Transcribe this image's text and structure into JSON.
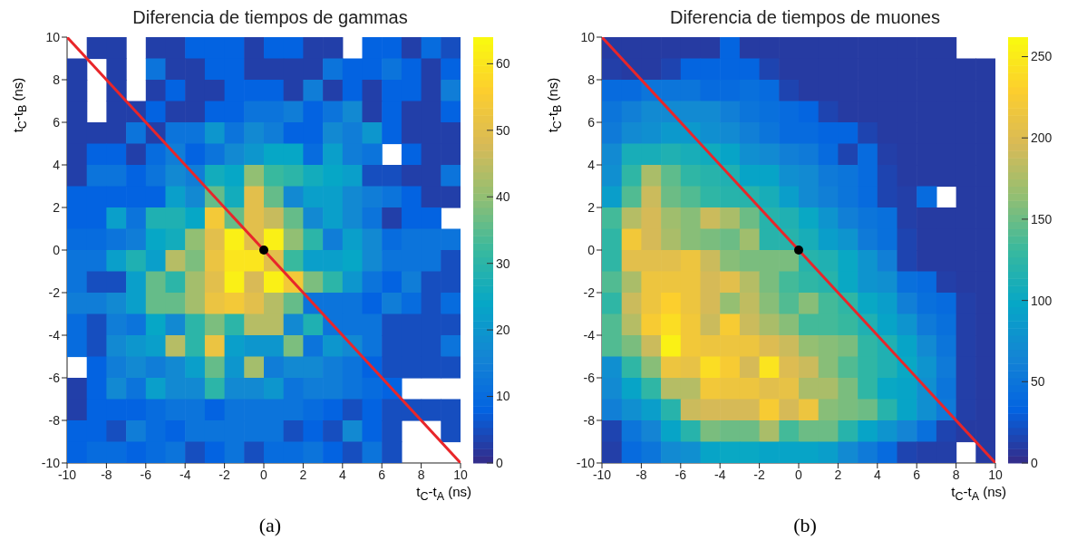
{
  "chart_data": [
    {
      "type": "heatmap",
      "title": "Diferencia de tiempos de gammas",
      "xlabel": "t$_{C}$-t$_{A}$ (ns)",
      "ylabel": "t$_{C}$-t$_{B}$ (ns)",
      "annotations": [
        "(a)"
      ],
      "xlim": [
        -10,
        10
      ],
      "ylim": [
        -10,
        10
      ],
      "xticks": [
        -10,
        -8,
        -6,
        -4,
        -2,
        0,
        2,
        4,
        6,
        8,
        10
      ],
      "yticks": [
        -10,
        -8,
        -6,
        -4,
        -2,
        0,
        2,
        4,
        6,
        8,
        10
      ],
      "clim": [
        0,
        64
      ],
      "cticks": [
        0,
        10,
        20,
        30,
        40,
        50,
        60
      ],
      "cells": [
        [
          null,
          3,
          3,
          null,
          3,
          3,
          8,
          8,
          8,
          3,
          8,
          8,
          3,
          3,
          null,
          8,
          8,
          3,
          10,
          5
        ],
        [
          3,
          null,
          3,
          null,
          12,
          3,
          3,
          8,
          8,
          3,
          3,
          3,
          3,
          12,
          8,
          8,
          12,
          8,
          3,
          8
        ],
        [
          3,
          null,
          3,
          null,
          3,
          8,
          3,
          3,
          8,
          8,
          8,
          3,
          14,
          3,
          8,
          3,
          8,
          8,
          3,
          14
        ],
        [
          3,
          null,
          3,
          3,
          8,
          3,
          3,
          8,
          8,
          12,
          12,
          14,
          8,
          12,
          17,
          3,
          8,
          3,
          3,
          8
        ],
        [
          3,
          3,
          3,
          12,
          3,
          12,
          12,
          20,
          12,
          17,
          14,
          8,
          8,
          17,
          14,
          20,
          8,
          3,
          3,
          3
        ],
        [
          3,
          8,
          8,
          3,
          10,
          14,
          8,
          12,
          17,
          20,
          24,
          24,
          10,
          22,
          14,
          12,
          null,
          8,
          3,
          3
        ],
        [
          3,
          12,
          12,
          8,
          12,
          17,
          14,
          26,
          24,
          40,
          32,
          30,
          26,
          24,
          22,
          5,
          5,
          3,
          3,
          12
        ],
        [
          8,
          8,
          8,
          8,
          8,
          22,
          17,
          36,
          26,
          50,
          36,
          17,
          22,
          22,
          17,
          14,
          12,
          8,
          3,
          3
        ],
        [
          8,
          8,
          22,
          12,
          28,
          28,
          24,
          54,
          36,
          50,
          46,
          36,
          17,
          22,
          17,
          12,
          3,
          8,
          8,
          null
        ],
        [
          10,
          10,
          12,
          14,
          24,
          26,
          40,
          50,
          62,
          50,
          62,
          40,
          30,
          14,
          22,
          17,
          10,
          12,
          12,
          12
        ],
        [
          12,
          12,
          22,
          28,
          22,
          44,
          38,
          52,
          60,
          60,
          50,
          32,
          22,
          22,
          24,
          17,
          12,
          12,
          12,
          5
        ],
        [
          12,
          5,
          5,
          22,
          36,
          30,
          42,
          50,
          62,
          48,
          62,
          54,
          38,
          30,
          20,
          12,
          8,
          14,
          5,
          5
        ],
        [
          14,
          14,
          17,
          22,
          36,
          36,
          42,
          52,
          54,
          50,
          44,
          36,
          12,
          12,
          12,
          8,
          14,
          10,
          5,
          10
        ],
        [
          10,
          5,
          14,
          12,
          24,
          17,
          30,
          38,
          30,
          44,
          44,
          17,
          28,
          12,
          12,
          12,
          5,
          5,
          5,
          5
        ],
        [
          10,
          5,
          17,
          20,
          22,
          44,
          30,
          52,
          22,
          20,
          20,
          38,
          12,
          20,
          17,
          12,
          5,
          5,
          5,
          12
        ],
        [
          null,
          8,
          14,
          17,
          14,
          17,
          22,
          36,
          20,
          42,
          14,
          17,
          17,
          14,
          12,
          8,
          5,
          5,
          5,
          5
        ],
        [
          3,
          8,
          17,
          12,
          22,
          17,
          17,
          30,
          17,
          17,
          20,
          12,
          14,
          14,
          12,
          10,
          8,
          null,
          null,
          null
        ],
        [
          3,
          8,
          8,
          8,
          10,
          12,
          12,
          8,
          12,
          12,
          12,
          12,
          10,
          8,
          5,
          8,
          5,
          5,
          5,
          5
        ],
        [
          8,
          8,
          5,
          14,
          10,
          8,
          12,
          12,
          12,
          12,
          12,
          5,
          8,
          5,
          17,
          8,
          5,
          null,
          null,
          5
        ],
        [
          8,
          10,
          10,
          8,
          10,
          12,
          5,
          8,
          12,
          5,
          10,
          10,
          12,
          8,
          5,
          12,
          5,
          null,
          null,
          null
        ]
      ],
      "series": [
        {
          "type": "line",
          "color": "#e8262a",
          "x": [
            -10,
            10
          ],
          "values": [
            10,
            -10
          ]
        },
        {
          "type": "scatter",
          "color": "#000000",
          "x": [
            0
          ],
          "values": [
            0
          ]
        }
      ]
    },
    {
      "type": "heatmap",
      "title": "Diferencia de tiempos de muones",
      "xlabel": "t$_{C}$-t$_{A}$ (ns)",
      "ylabel": "t$_{C}$-t$_{B}$ (ns)",
      "annotations": [
        "(b)"
      ],
      "xlim": [
        -10,
        10
      ],
      "ylim": [
        -10,
        10
      ],
      "xticks": [
        -10,
        -8,
        -6,
        -4,
        -2,
        0,
        2,
        4,
        6,
        8,
        10
      ],
      "yticks": [
        -10,
        -8,
        -6,
        -4,
        -2,
        0,
        2,
        4,
        6,
        8,
        10
      ],
      "clim": [
        0,
        262
      ],
      "cticks": [
        0,
        50,
        100,
        150,
        200,
        250
      ],
      "cells": [
        [
          10,
          10,
          10,
          10,
          10,
          10,
          35,
          10,
          10,
          10,
          10,
          10,
          10,
          10,
          10,
          10,
          10,
          10,
          null,
          null
        ],
        [
          12,
          10,
          10,
          15,
          35,
          35,
          35,
          35,
          15,
          10,
          10,
          10,
          10,
          10,
          10,
          10,
          10,
          10,
          10,
          10
        ],
        [
          40,
          40,
          50,
          50,
          50,
          40,
          40,
          45,
          40,
          15,
          10,
          10,
          10,
          10,
          10,
          10,
          10,
          10,
          10,
          10
        ],
        [
          50,
          60,
          70,
          70,
          70,
          70,
          60,
          50,
          45,
          40,
          35,
          15,
          10,
          10,
          10,
          10,
          10,
          10,
          10,
          10
        ],
        [
          55,
          70,
          75,
          85,
          85,
          75,
          70,
          60,
          50,
          40,
          40,
          35,
          35,
          15,
          10,
          10,
          10,
          10,
          10,
          10
        ],
        [
          70,
          110,
          110,
          115,
          110,
          105,
          95,
          75,
          70,
          60,
          55,
          40,
          15,
          40,
          12,
          10,
          10,
          10,
          10,
          10
        ],
        [
          75,
          125,
          175,
          145,
          125,
          120,
          115,
          95,
          95,
          75,
          70,
          55,
          50,
          40,
          15,
          10,
          10,
          10,
          10,
          10
        ],
        [
          90,
          140,
          190,
          150,
          140,
          125,
          120,
          120,
          110,
          90,
          70,
          60,
          50,
          40,
          15,
          12,
          40,
          null,
          10,
          10
        ],
        [
          135,
          180,
          195,
          170,
          160,
          190,
          175,
          150,
          120,
          115,
          100,
          80,
          60,
          50,
          45,
          12,
          10,
          10,
          10,
          10
        ],
        [
          125,
          220,
          195,
          175,
          160,
          155,
          150,
          170,
          120,
          120,
          110,
          90,
          80,
          55,
          45,
          15,
          10,
          10,
          10,
          10
        ],
        [
          125,
          205,
          205,
          205,
          215,
          190,
          160,
          155,
          155,
          155,
          120,
          115,
          100,
          80,
          60,
          15,
          10,
          10,
          10,
          10
        ],
        [
          140,
          175,
          215,
          215,
          215,
          195,
          205,
          180,
          155,
          135,
          125,
          120,
          100,
          80,
          75,
          45,
          40,
          12,
          10,
          10
        ],
        [
          125,
          190,
          215,
          230,
          215,
          195,
          165,
          185,
          160,
          140,
          160,
          135,
          125,
          100,
          90,
          60,
          45,
          40,
          12,
          10
        ],
        [
          140,
          180,
          225,
          240,
          220,
          190,
          225,
          190,
          175,
          160,
          135,
          135,
          130,
          115,
          95,
          80,
          55,
          45,
          12,
          10
        ],
        [
          140,
          155,
          190,
          255,
          220,
          215,
          215,
          215,
          200,
          190,
          165,
          160,
          155,
          125,
          115,
          95,
          70,
          50,
          12,
          10
        ],
        [
          75,
          125,
          160,
          215,
          210,
          240,
          225,
          195,
          245,
          200,
          190,
          160,
          140,
          125,
          115,
          100,
          80,
          55,
          12,
          10
        ],
        [
          70,
          95,
          125,
          180,
          180,
          220,
          215,
          215,
          205,
          210,
          175,
          175,
          155,
          125,
          100,
          95,
          75,
          50,
          12,
          10
        ],
        [
          60,
          75,
          90,
          120,
          190,
          195,
          195,
          195,
          225,
          195,
          215,
          160,
          155,
          150,
          120,
          95,
          75,
          55,
          12,
          10
        ],
        [
          15,
          50,
          65,
          95,
          120,
          155,
          150,
          150,
          175,
          135,
          150,
          150,
          120,
          95,
          80,
          65,
          45,
          15,
          10,
          10
        ],
        [
          12,
          40,
          50,
          70,
          75,
          95,
          100,
          100,
          95,
          95,
          95,
          90,
          70,
          55,
          40,
          15,
          12,
          12,
          null,
          10
        ]
      ],
      "series": [
        {
          "type": "line",
          "color": "#e8262a",
          "x": [
            -10,
            10
          ],
          "values": [
            10,
            -10
          ]
        },
        {
          "type": "scatter",
          "color": "#000000",
          "x": [
            0
          ],
          "values": [
            0
          ]
        }
      ]
    }
  ]
}
